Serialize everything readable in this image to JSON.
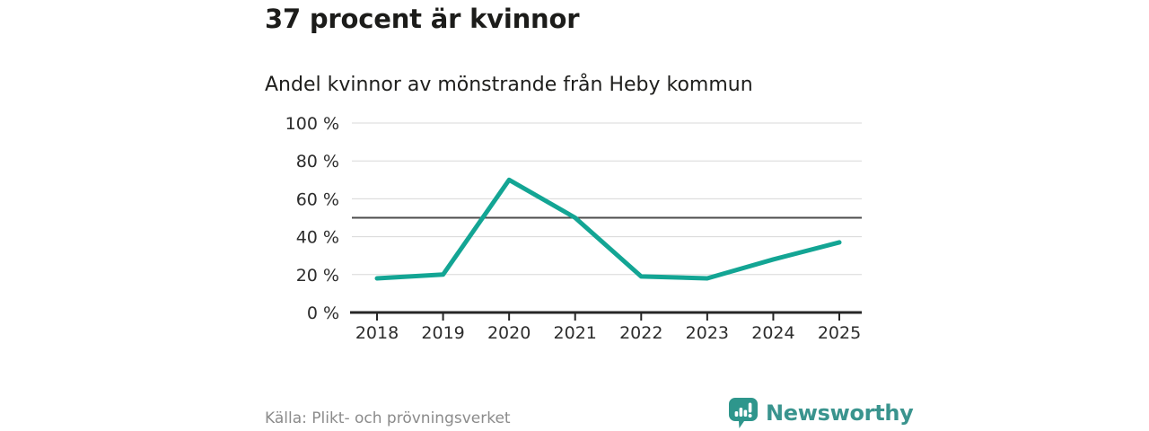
{
  "headline": "37 procent är kvinnor",
  "subtitle": "Andel kvinnor av mönstrande från Heby kommun",
  "source": "Källa: Plikt- och prövningsverket",
  "brand": {
    "name": "Newsworthy",
    "text_color": "#3a948e",
    "icon_color": "#2e968c",
    "icon": "speech-bubble-bar-chart"
  },
  "chart_data": {
    "type": "line",
    "title": "Andel kvinnor av mönstrande från Heby kommun",
    "categories": [
      "2018",
      "2019",
      "2020",
      "2021",
      "2022",
      "2023",
      "2024",
      "2025"
    ],
    "values": [
      18,
      20,
      70,
      50,
      19,
      18,
      28,
      37
    ],
    "series_name": "Andel kvinnor",
    "xlabel": "",
    "ylabel": "",
    "ylim": [
      0,
      100
    ],
    "yticks": [
      0,
      20,
      40,
      60,
      80,
      100
    ],
    "ytick_suffix": " %",
    "reference_line": 50,
    "grid": true,
    "legend": "none",
    "line_color": "#13a594",
    "grid_color": "#d8d8d8",
    "reference_line_color": "#4d4d4d",
    "axis_color": "#262626"
  }
}
